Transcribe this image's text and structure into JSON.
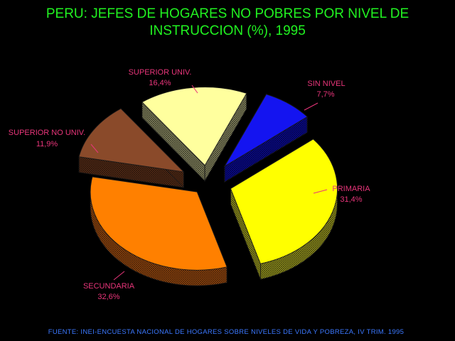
{
  "chart_data": {
    "type": "pie",
    "style": "exploded-3d",
    "title_lines": [
      "PERU: JEFES DE HOGARES NO POBRES POR NIVEL DE",
      "INSTRUCCION (%), 1995"
    ],
    "slices": [
      {
        "label": "SIN NIVEL",
        "value_text": "7,7%",
        "value": 7.7,
        "color": "#1414f0",
        "side_color": "#0a0a9a"
      },
      {
        "label": "PRIMARIA",
        "value_text": "31,4%",
        "value": 31.4,
        "color": "#ffff00",
        "side_color": "#9a9a20"
      },
      {
        "label": "SECUNDARIA",
        "value_text": "32,6%",
        "value": 32.6,
        "color": "#ff8000",
        "side_color": "#9a4a10"
      },
      {
        "label": "SUPERIOR NO UNIV.",
        "value_text": "11,9%",
        "value": 11.9,
        "color": "#8a4a2a",
        "side_color": "#5a2e18"
      },
      {
        "label": "SUPERIOR UNIV.",
        "value_text": "16,4%",
        "value": 16.4,
        "color": "#ffff9e",
        "side_color": "#8c8c64"
      }
    ],
    "label_color": "#e8357a",
    "title_color": "#21f221"
  },
  "footer": {
    "source": "FUENTE: INEI-ENCUESTA NACIONAL DE HOGARES SOBRE NIVELES DE VIDA Y POBREZA, IV TRIM. 1995",
    "color": "#3b78ff"
  }
}
